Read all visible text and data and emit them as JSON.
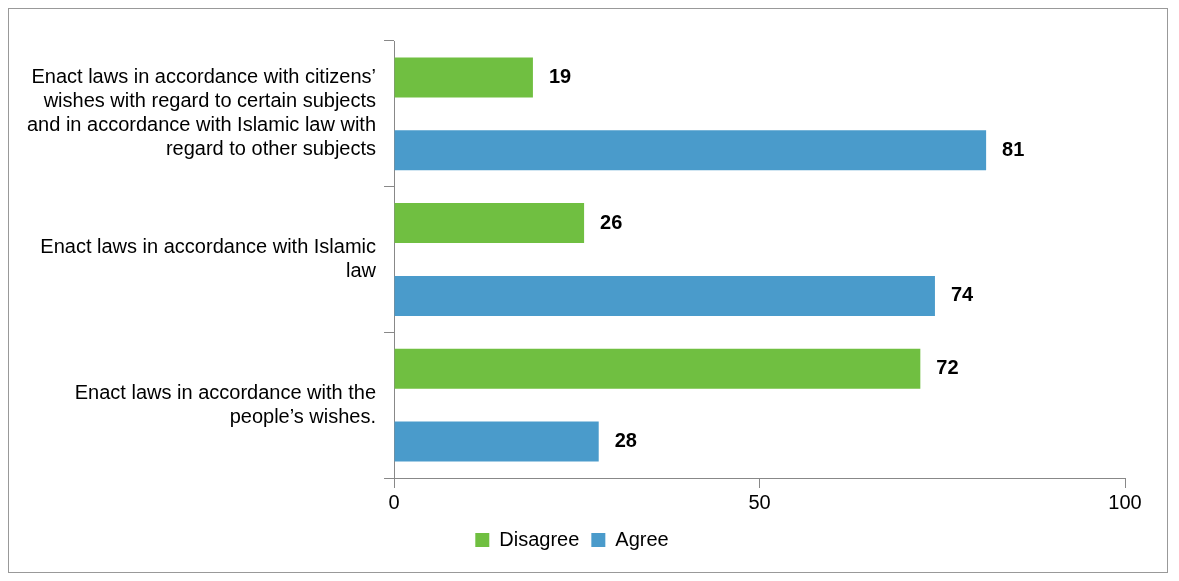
{
  "chart_data": {
    "type": "bar",
    "orientation": "horizontal",
    "categories": [
      "Enact laws in accordance with citizens’ wishes with regard to certain subjects and in accordance with Islamic law with regard to other subjects",
      "Enact laws in accordance with Islamic law",
      "Enact laws in accordance with the people’s wishes."
    ],
    "series": [
      {
        "name": "Disagree",
        "color": "#70bf41",
        "values": [
          19,
          26,
          72
        ]
      },
      {
        "name": "Agree",
        "color": "#4a9bcb",
        "values": [
          81,
          74,
          28
        ]
      }
    ],
    "xlim": [
      0,
      100
    ],
    "xticks": [
      0,
      50,
      100
    ],
    "data_labels": true,
    "legend": "bottom"
  }
}
